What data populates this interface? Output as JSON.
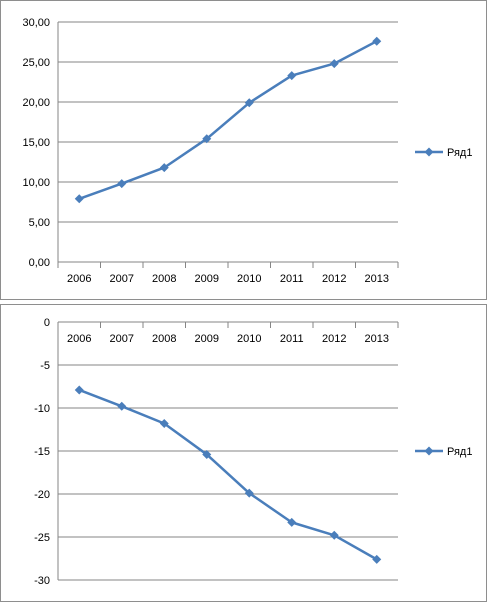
{
  "chart_data": [
    {
      "type": "line",
      "categories": [
        "2006",
        "2007",
        "2008",
        "2009",
        "2010",
        "2011",
        "2012",
        "2013"
      ],
      "series": [
        {
          "name": "Ряд1",
          "values": [
            7.9,
            9.8,
            11.8,
            15.4,
            19.9,
            23.3,
            24.8,
            27.6
          ],
          "color": "#4a7ebb"
        }
      ],
      "y_ticks": [
        "0,00",
        "5,00",
        "10,00",
        "15,00",
        "20,00",
        "25,00",
        "30,00"
      ],
      "ylim": [
        0,
        30
      ],
      "grid": true,
      "legend": "right"
    },
    {
      "type": "line",
      "categories": [
        "2006",
        "2007",
        "2008",
        "2009",
        "2010",
        "2011",
        "2012",
        "2013"
      ],
      "series": [
        {
          "name": "Ряд1",
          "values": [
            -7.9,
            -9.8,
            -11.8,
            -15.4,
            -19.9,
            -23.3,
            -24.8,
            -27.6
          ],
          "color": "#4a7ebb"
        }
      ],
      "y_ticks": [
        "0",
        "-5",
        "-10",
        "-15",
        "-20",
        "-25",
        "-30"
      ],
      "ylim": [
        -30,
        0
      ],
      "x_axis_position": "top",
      "grid": true,
      "legend": "right"
    }
  ]
}
